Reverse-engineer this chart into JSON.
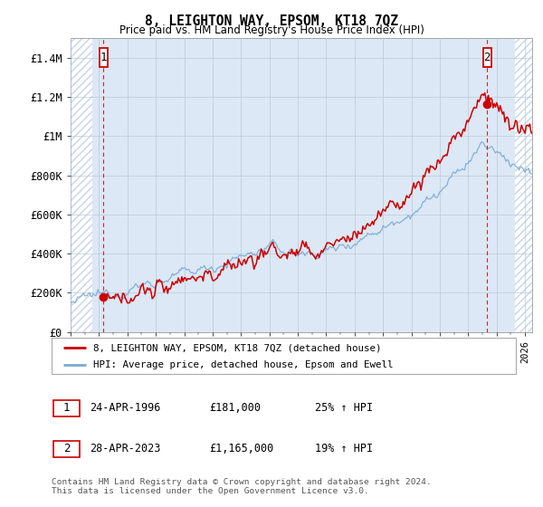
{
  "title": "8, LEIGHTON WAY, EPSOM, KT18 7QZ",
  "subtitle": "Price paid vs. HM Land Registry's House Price Index (HPI)",
  "ylim": [
    0,
    1500000
  ],
  "yticks": [
    0,
    200000,
    400000,
    600000,
    800000,
    1000000,
    1200000,
    1400000
  ],
  "ytick_labels": [
    "£0",
    "£200K",
    "£400K",
    "£600K",
    "£800K",
    "£1M",
    "£1.2M",
    "£1.4M"
  ],
  "xlim_start": 1994.0,
  "xlim_end": 2026.5,
  "hatch_left_end": 1995.5,
  "hatch_right_start": 2025.3,
  "sale1_x": 1996.32,
  "sale1_y": 181000,
  "sale2_x": 2023.33,
  "sale2_y": 1165000,
  "hpi_color": "#7baad4",
  "price_color": "#cc0000",
  "marker_color": "#cc0000",
  "annotation_box_color": "#cc0000",
  "hatch_color": "#c5d5e8",
  "grid_color": "#b8c8d8",
  "plot_bg_color": "#dce8f5",
  "legend_label_price": "8, LEIGHTON WAY, EPSOM, KT18 7QZ (detached house)",
  "legend_label_hpi": "HPI: Average price, detached house, Epsom and Ewell",
  "footer": "Contains HM Land Registry data © Crown copyright and database right 2024.\nThis data is licensed under the Open Government Licence v3.0.",
  "table_row1": [
    "1",
    "24-APR-1996",
    "£181,000",
    "25% ↑ HPI"
  ],
  "table_row2": [
    "2",
    "28-APR-2023",
    "£1,165,000",
    "19% ↑ HPI"
  ]
}
